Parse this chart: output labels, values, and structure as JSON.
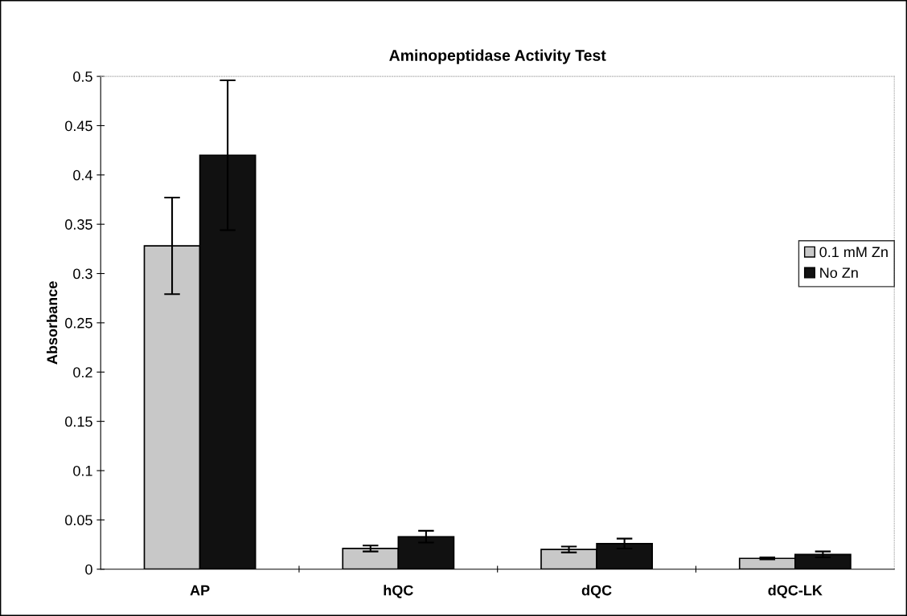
{
  "chart_data": {
    "type": "bar",
    "title": "Aminopeptidase Activity Test",
    "ylabel": "Absorbance",
    "categories": [
      "AP",
      "hQC",
      "dQC",
      "dQC-LK"
    ],
    "series": [
      {
        "name": "0.1 mM Zn",
        "color": "#c8c8c8",
        "values": [
          0.328,
          0.021,
          0.02,
          0.011
        ],
        "errors": [
          0.049,
          0.003,
          0.003,
          0.001
        ]
      },
      {
        "name": "No Zn",
        "color": "#111111",
        "values": [
          0.42,
          0.033,
          0.026,
          0.015
        ],
        "errors": [
          0.076,
          0.006,
          0.005,
          0.003
        ]
      }
    ],
    "ylim": [
      0,
      0.5
    ],
    "yticks": [
      0,
      0.05,
      0.1,
      0.15,
      0.2,
      0.25,
      0.3,
      0.35,
      0.4,
      0.45,
      0.5
    ],
    "grid": false,
    "legend": "right"
  }
}
